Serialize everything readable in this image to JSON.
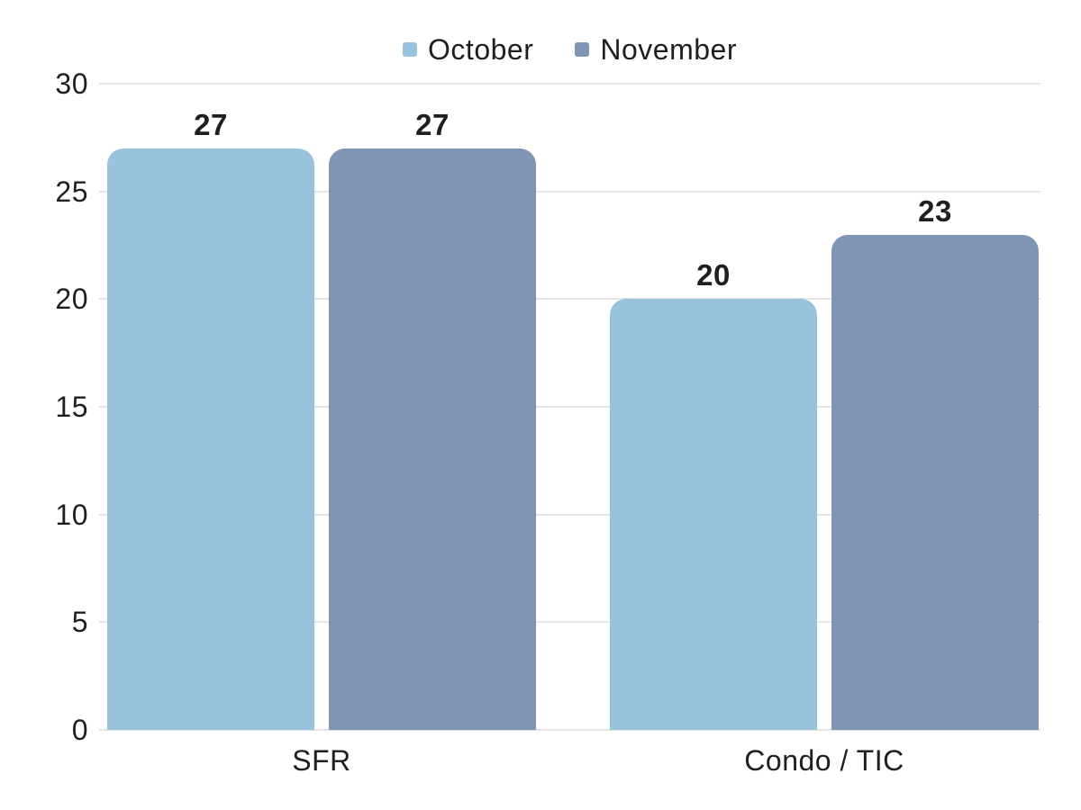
{
  "chart_data": {
    "type": "bar",
    "categories": [
      "SFR",
      "Condo / TIC"
    ],
    "series": [
      {
        "name": "October",
        "color": "#99C3DC",
        "values": [
          27,
          20
        ]
      },
      {
        "name": "November",
        "color": "#7E95B4",
        "values": [
          27,
          23
        ]
      }
    ],
    "ylim": [
      0,
      30
    ],
    "yticks": [
      30,
      25,
      20,
      15,
      10,
      5,
      0
    ],
    "grid": true,
    "legend_position": "top-center",
    "value_labels": true
  }
}
